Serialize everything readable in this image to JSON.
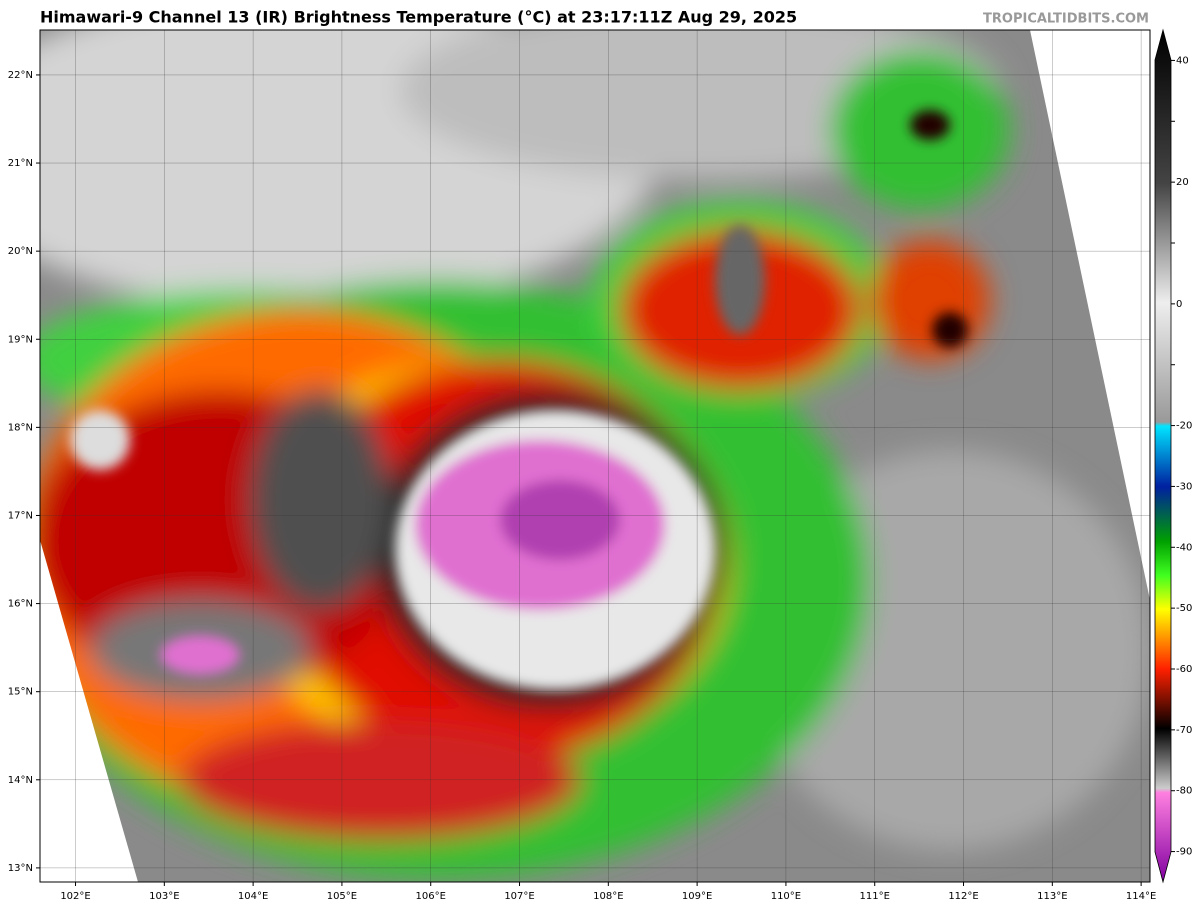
{
  "map": {
    "title": "Himawari-9 Channel 13 (IR) Brightness Temperature (°C) at 23:17:11Z Aug 29, 2025",
    "credit": "TROPICALTIDBITS.COM",
    "lonlim": [
      101.6,
      114.1
    ],
    "latlim": [
      12.84,
      22.51
    ],
    "lon_ticks": [
      {
        "value": 102,
        "label": "102°E"
      },
      {
        "value": 103,
        "label": "103°E"
      },
      {
        "value": 104,
        "label": "104°E"
      },
      {
        "value": 105,
        "label": "105°E"
      },
      {
        "value": 106,
        "label": "106°E"
      },
      {
        "value": 107,
        "label": "107°E"
      },
      {
        "value": 108,
        "label": "108°E"
      },
      {
        "value": 109,
        "label": "109°E"
      },
      {
        "value": 110,
        "label": "110°E"
      },
      {
        "value": 111,
        "label": "111°E"
      },
      {
        "value": 112,
        "label": "112°E"
      },
      {
        "value": 113,
        "label": "113°E"
      },
      {
        "value": 114,
        "label": "114°E"
      }
    ],
    "lat_ticks": [
      {
        "value": 22,
        "label": "22°N"
      },
      {
        "value": 21,
        "label": "21°N"
      },
      {
        "value": 20,
        "label": "20°N"
      },
      {
        "value": 19,
        "label": "19°N"
      },
      {
        "value": 18,
        "label": "18°N"
      },
      {
        "value": 17,
        "label": "17°N"
      },
      {
        "value": 16,
        "label": "16°N"
      },
      {
        "value": 15,
        "label": "15°N"
      },
      {
        "value": 14,
        "label": "14°N"
      },
      {
        "value": 13,
        "label": "13°N"
      }
    ],
    "colorbar": {
      "lim": [
        -95,
        45
      ],
      "ticks": [
        40,
        30,
        20,
        10,
        0,
        -10,
        -20,
        -30,
        -40,
        -50,
        -60,
        -70,
        -80,
        -90
      ],
      "labeled_ticks": [
        40,
        20,
        0,
        -20,
        -30,
        -40,
        -50,
        -60,
        -70,
        -80,
        -90
      ]
    }
  }
}
